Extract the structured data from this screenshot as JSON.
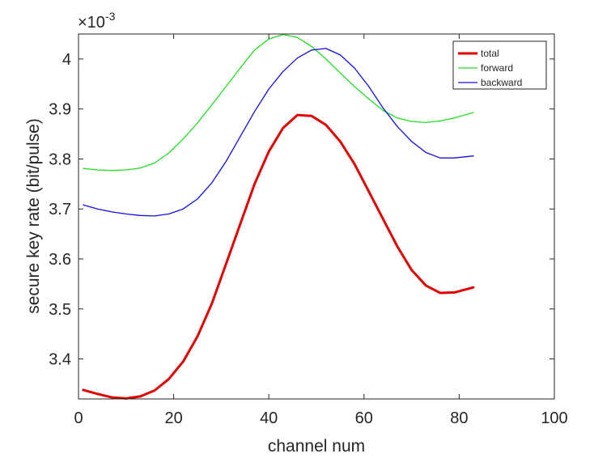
{
  "chart_data": {
    "type": "line",
    "title": "",
    "xlabel": "channel num",
    "ylabel": "secure key rate (bit/pulse)",
    "xlim": [
      0,
      100
    ],
    "ylim": [
      3.32,
      4.05
    ],
    "exponent_label": "×10",
    "exponent_power": "-3",
    "x_ticks": [
      0,
      20,
      40,
      60,
      80,
      100
    ],
    "x_tick_labels": [
      "0",
      "20",
      "40",
      "60",
      "80",
      "100"
    ],
    "y_ticks": [
      3.4,
      3.5,
      3.6,
      3.7,
      3.8,
      3.9,
      4.0
    ],
    "y_tick_labels": [
      "3.4",
      "3.5",
      "3.6",
      "3.7",
      "3.8",
      "3.9",
      "4"
    ],
    "grid": false,
    "legend_position": "top-right",
    "series": [
      {
        "name": "total",
        "color": "#e00000",
        "line_width": "thick",
        "x": [
          1,
          4,
          7,
          10,
          13,
          16,
          19,
          22,
          25,
          28,
          31,
          34,
          37,
          40,
          43,
          46,
          49,
          52,
          55,
          58,
          61,
          64,
          67,
          70,
          73,
          76,
          79,
          83
        ],
        "y": [
          3.338,
          3.33,
          3.323,
          3.321,
          3.325,
          3.337,
          3.36,
          3.395,
          3.445,
          3.51,
          3.59,
          3.67,
          3.75,
          3.815,
          3.862,
          3.888,
          3.886,
          3.868,
          3.835,
          3.79,
          3.735,
          3.68,
          3.625,
          3.578,
          3.547,
          3.532,
          3.533,
          3.543
        ]
      },
      {
        "name": "forward",
        "color": "#22dd22",
        "line_width": "thin",
        "x": [
          1,
          4,
          7,
          10,
          13,
          16,
          19,
          22,
          25,
          28,
          31,
          34,
          37,
          40,
          43,
          46,
          49,
          52,
          55,
          58,
          61,
          64,
          67,
          70,
          73,
          76,
          79,
          83
        ],
        "y": [
          3.781,
          3.778,
          3.777,
          3.778,
          3.782,
          3.792,
          3.812,
          3.84,
          3.872,
          3.908,
          3.945,
          3.982,
          4.018,
          4.04,
          4.049,
          4.043,
          4.025,
          4.0,
          3.972,
          3.945,
          3.92,
          3.897,
          3.882,
          3.875,
          3.873,
          3.876,
          3.882,
          3.893
        ]
      },
      {
        "name": "backward",
        "color": "#1010e0",
        "line_width": "thin",
        "x": [
          1,
          4,
          7,
          10,
          13,
          16,
          19,
          22,
          25,
          28,
          31,
          34,
          37,
          40,
          43,
          46,
          49,
          52,
          55,
          58,
          61,
          64,
          67,
          70,
          73,
          76,
          79,
          83
        ],
        "y": [
          3.708,
          3.7,
          3.694,
          3.69,
          3.687,
          3.686,
          3.69,
          3.7,
          3.72,
          3.752,
          3.795,
          3.845,
          3.895,
          3.94,
          3.975,
          4.002,
          4.018,
          4.021,
          4.008,
          3.982,
          3.945,
          3.902,
          3.865,
          3.835,
          3.813,
          3.802,
          3.802,
          3.806
        ]
      }
    ]
  }
}
